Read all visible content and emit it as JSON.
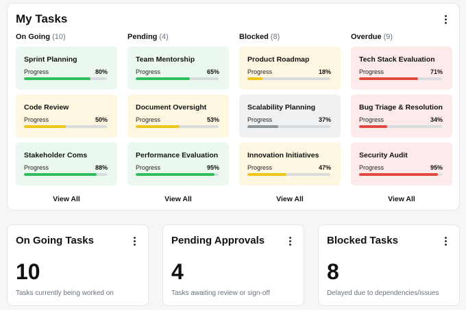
{
  "panel": {
    "title": "My Tasks",
    "columns": [
      {
        "name": "On Going",
        "count": "(10)",
        "cards": [
          {
            "title": "Sprint Planning",
            "progress_label": "Progress",
            "progress_text": "80%",
            "progress": 80,
            "tone": "green"
          },
          {
            "title": "Code Review",
            "progress_label": "Progress",
            "progress_text": "50%",
            "progress": 50,
            "tone": "yellow"
          },
          {
            "title": "Stakeholder Coms",
            "progress_label": "Progress",
            "progress_text": "88%",
            "progress": 88,
            "tone": "green"
          }
        ],
        "view_all": "View All"
      },
      {
        "name": "Pending",
        "count": "(4)",
        "cards": [
          {
            "title": "Team Mentorship",
            "progress_label": "Progress",
            "progress_text": "65%",
            "progress": 65,
            "tone": "green"
          },
          {
            "title": "Document Oversight",
            "progress_label": "Progress",
            "progress_text": "53%",
            "progress": 53,
            "tone": "yellow"
          },
          {
            "title": "Performance Evaluation",
            "progress_label": "Progress",
            "progress_text": "95%",
            "progress": 95,
            "tone": "green"
          }
        ],
        "view_all": "View All"
      },
      {
        "name": "Blocked",
        "count": "(8)",
        "cards": [
          {
            "title": "Product Roadmap",
            "progress_label": "Progress",
            "progress_text": "18%",
            "progress": 18,
            "tone": "yellow"
          },
          {
            "title": "Scalability Planning",
            "progress_label": "Progress",
            "progress_text": "37%",
            "progress": 37,
            "tone": "gray"
          },
          {
            "title": "Innovation Initiatives",
            "progress_label": "Progress",
            "progress_text": "47%",
            "progress": 47,
            "tone": "yellow"
          }
        ],
        "view_all": "View All"
      },
      {
        "name": "Overdue",
        "count": "(9)",
        "cards": [
          {
            "title": "Tech Stack Evaluation",
            "progress_label": "Progress",
            "progress_text": "71%",
            "progress": 71,
            "tone": "red"
          },
          {
            "title": "Bug Triage & Resolution",
            "progress_label": "Progress",
            "progress_text": "34%",
            "progress": 34,
            "tone": "red"
          },
          {
            "title": "Security Audit",
            "progress_label": "Progress",
            "progress_text": "95%",
            "progress": 95,
            "tone": "red"
          }
        ],
        "view_all": "View All"
      }
    ]
  },
  "tones": {
    "green": "#2fbf5f",
    "yellow": "#f0c419",
    "gray": "#8e9599",
    "red": "#e04a3f"
  },
  "stats": [
    {
      "title": "On Going Tasks",
      "value": "10",
      "subtitle": "Tasks currently being worked on"
    },
    {
      "title": "Pending Approvals",
      "value": "4",
      "subtitle": "Tasks awaiting review or sign-off"
    },
    {
      "title": "Blocked Tasks",
      "value": "8",
      "subtitle": "Delayed due to dependencies/issues"
    }
  ],
  "icons": {
    "menu": "kebab-menu-icon"
  }
}
